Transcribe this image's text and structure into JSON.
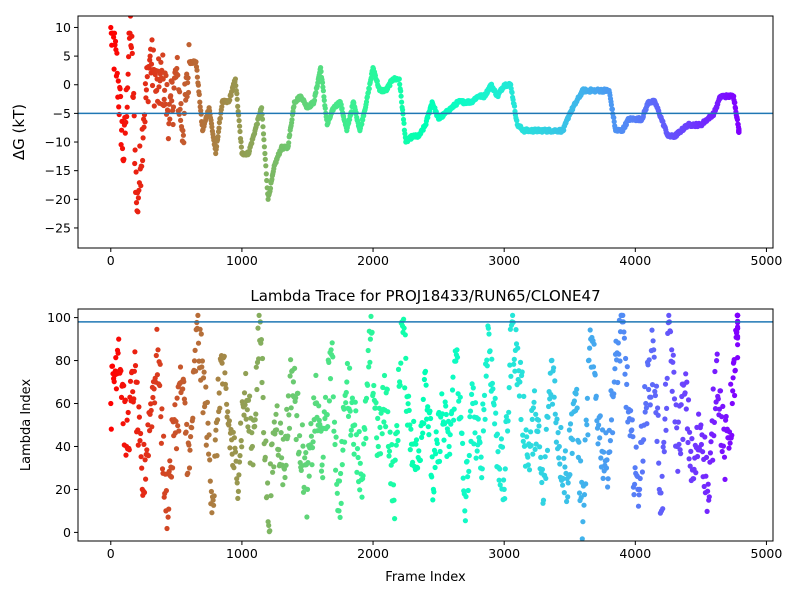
{
  "chart_data": [
    {
      "type": "scatter",
      "title": "",
      "xlabel": "",
      "ylabel": "ΔG (kT)",
      "xlim": [
        -250,
        5050
      ],
      "ylim": [
        -28.5,
        12
      ],
      "xticks": [
        0,
        1000,
        2000,
        3000,
        4000,
        5000
      ],
      "yticks": [
        -25,
        -20,
        -15,
        -10,
        -5,
        0,
        5,
        10
      ],
      "x_tick_labels": [
        "0",
        "1000",
        "2000",
        "3000",
        "4000",
        "5000"
      ],
      "y_tick_labels": [
        "−25",
        "−20",
        "−15",
        "−10",
        "−5",
        "0",
        "5",
        "10"
      ],
      "hline": -5,
      "hline_color": "#1f77b4",
      "colormap": "rainbow (red at frame 0 → violet at last frame)",
      "grid": false,
      "series": [
        {
          "x": [
            0,
            50,
            100,
            150,
            200,
            250,
            300,
            350,
            400,
            450,
            500,
            550,
            600,
            650,
            700,
            750,
            800,
            850,
            900,
            950,
            1000,
            1050,
            1100,
            1150,
            1200,
            1250,
            1300,
            1350,
            1400,
            1450,
            1500,
            1550,
            1600,
            1650,
            1700,
            1750,
            1800,
            1850,
            1900,
            1950,
            2000,
            2050,
            2100,
            2150,
            2200,
            2250,
            2300,
            2350,
            2400,
            2450,
            2500,
            2550,
            2600,
            2650,
            2700,
            2750,
            2800,
            2850,
            2900,
            2950,
            3000,
            3050,
            3100,
            3150,
            3200,
            3250,
            3300,
            3350,
            3400,
            3450,
            3500,
            3550,
            3600,
            3650,
            3700,
            3750,
            3800,
            3850,
            3900,
            3950,
            4000,
            4050,
            4100,
            4150,
            4200,
            4250,
            4300,
            4350,
            4400,
            4450,
            4500,
            4550,
            4600,
            4650,
            4700,
            4750,
            4790
          ],
          "y": [
            10,
            2,
            -13,
            12,
            -22,
            -6,
            5,
            -1,
            1,
            -6,
            2,
            -8,
            4,
            4,
            -8,
            -4,
            -12,
            -3,
            -3,
            1,
            -12,
            -12,
            -8,
            -4,
            -20,
            -14,
            -11,
            -11,
            -3,
            -2,
            -4,
            -3,
            3,
            -7,
            -4,
            -3,
            -8,
            -3,
            -8,
            -3,
            3,
            -1,
            -1,
            1,
            1,
            -10,
            -9,
            -9,
            -7,
            -3,
            -6,
            -5,
            -4,
            -3,
            -3,
            -3,
            -2,
            -2,
            0,
            -2,
            0,
            0,
            -7,
            -8,
            -8,
            -8,
            -8,
            -8,
            -8,
            -8,
            -5,
            -3,
            -1,
            -1,
            -1,
            -1,
            -1,
            -8,
            -8,
            -6,
            -6,
            -6,
            -3,
            -3,
            -6,
            -9,
            -9,
            -8,
            -7,
            -7,
            -7,
            -6,
            -5,
            -2,
            -2,
            -2,
            -8
          ]
        }
      ]
    },
    {
      "type": "scatter",
      "title": "Lambda Trace for PROJ18433/RUN65/CLONE47",
      "xlabel": "Frame Index",
      "ylabel": "Lambda Index",
      "xlim": [
        -250,
        5050
      ],
      "ylim": [
        -4,
        104
      ],
      "xticks": [
        0,
        1000,
        2000,
        3000,
        4000,
        5000
      ],
      "yticks": [
        0,
        20,
        40,
        60,
        80,
        100
      ],
      "x_tick_labels": [
        "0",
        "1000",
        "2000",
        "3000",
        "4000",
        "5000"
      ],
      "y_tick_labels": [
        "0",
        "20",
        "40",
        "60",
        "80",
        "100"
      ],
      "hline": 98,
      "hline_color": "#1f77b4",
      "colormap": "rainbow (red at frame 0 → violet at last frame)",
      "grid": false,
      "series": [
        {
          "x": [
            0,
            60,
            120,
            180,
            240,
            300,
            360,
            420,
            480,
            540,
            600,
            660,
            720,
            780,
            840,
            900,
            960,
            1020,
            1080,
            1140,
            1200,
            1260,
            1320,
            1380,
            1440,
            1500,
            1560,
            1620,
            1680,
            1740,
            1800,
            1860,
            1920,
            1980,
            2040,
            2100,
            2160,
            2220,
            2280,
            2340,
            2400,
            2460,
            2520,
            2580,
            2640,
            2700,
            2760,
            2820,
            2880,
            2940,
            3000,
            3060,
            3120,
            3180,
            3240,
            3300,
            3360,
            3420,
            3480,
            3540,
            3600,
            3660,
            3720,
            3780,
            3840,
            3900,
            3960,
            4020,
            4080,
            4140,
            4200,
            4260,
            4320,
            4380,
            4440,
            4500,
            4560,
            4620,
            4680,
            4740,
            4780
          ],
          "y": [
            60,
            90,
            40,
            75,
            20,
            55,
            85,
            10,
            45,
            70,
            30,
            95,
            60,
            15,
            80,
            50,
            25,
            65,
            40,
            98,
            5,
            55,
            30,
            75,
            45,
            20,
            60,
            35,
            85,
            10,
            70,
            50,
            25,
            90,
            40,
            65,
            15,
            98,
            50,
            30,
            75,
            20,
            55,
            40,
            85,
            10,
            60,
            30,
            95,
            45,
            20,
            98,
            70,
            35,
            55,
            15,
            80,
            40,
            25,
            65,
            5,
            90,
            50,
            30,
            70,
            98,
            45,
            20,
            60,
            85,
            10,
            98,
            40,
            65,
            25,
            50,
            15,
            80,
            35,
            60,
            95
          ]
        }
      ]
    }
  ]
}
